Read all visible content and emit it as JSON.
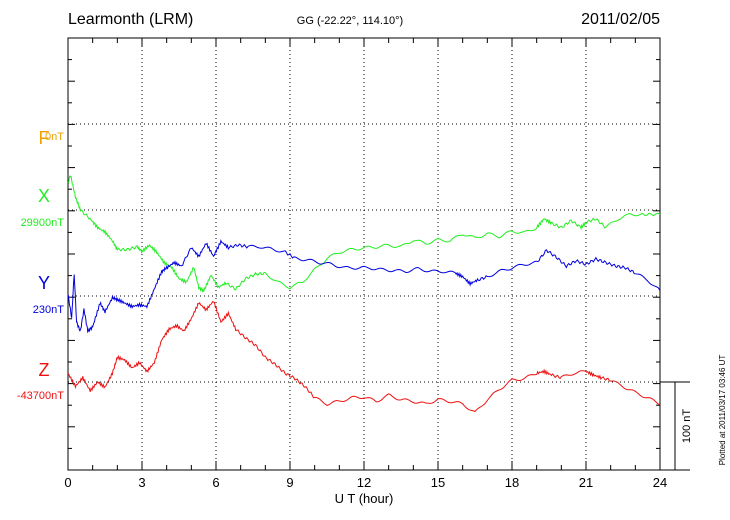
{
  "header": {
    "station": "Learmonth (LRM)",
    "coords": "GG (-22.22°, 114.10°)",
    "date": "2011/02/05"
  },
  "plotted_note": "Plotted at 2011/03/17 03:46 UT",
  "colors": {
    "F": "#f0a000",
    "X": "#22ee22",
    "Y": "#0000dd",
    "Z": "#ee1111",
    "axis": "#000000"
  },
  "chart_data": {
    "type": "line",
    "title": "Learmonth (LRM)",
    "xlabel": "U T (hour)",
    "ylabel": "",
    "xlim": [
      0,
      24
    ],
    "x_ticks": [
      0,
      3,
      6,
      9,
      12,
      15,
      18,
      21,
      24
    ],
    "x_tick_labels": [
      "0",
      "3",
      "6",
      "9",
      "12",
      "15",
      "18",
      "21",
      "24"
    ],
    "grid": true,
    "scale_bar_label": "100 nT",
    "scale_bar_nT": 100,
    "channels": [
      {
        "name": "F",
        "label": "F",
        "baseline_label": "0nT",
        "baseline_nT": 0,
        "has_data": false
      },
      {
        "name": "X",
        "label": "X",
        "baseline_label": "29900nT",
        "baseline_nT": 29900,
        "has_data": true
      },
      {
        "name": "Y",
        "label": "Y",
        "baseline_label": "230nT",
        "baseline_nT": 230,
        "has_data": true
      },
      {
        "name": "Z",
        "label": "Z",
        "baseline_label": "-43700nT",
        "baseline_nT": -43700,
        "has_data": true
      }
    ],
    "series": [
      {
        "name": "X",
        "unit": "nT",
        "x": [
          0,
          0.1,
          0.3,
          0.5,
          0.9,
          1.2,
          1.5,
          1.8,
          2.0,
          2.4,
          2.8,
          3.0,
          3.3,
          3.6,
          3.9,
          4.2,
          4.5,
          4.8,
          5.1,
          5.3,
          5.5,
          5.8,
          6.1,
          6.4,
          6.8,
          7.2,
          7.6,
          8.0,
          8.5,
          9.0,
          9.5,
          10.0,
          10.5,
          11.0,
          11.5,
          12.0,
          12.5,
          13.0,
          13.5,
          14.0,
          14.5,
          15.0,
          15.5,
          16.0,
          16.5,
          17.0,
          17.5,
          18.0,
          18.5,
          19.0,
          19.3,
          19.6,
          20.0,
          20.4,
          20.8,
          21.0,
          21.4,
          21.8,
          22.3,
          22.8,
          23.3,
          24.0
        ],
        "values": [
          29930,
          29940,
          29915,
          29900,
          29890,
          29880,
          29875,
          29865,
          29855,
          29855,
          29858,
          29853,
          29860,
          29852,
          29840,
          29835,
          29822,
          29818,
          29835,
          29812,
          29808,
          29826,
          29812,
          29817,
          29810,
          29822,
          29827,
          29828,
          29818,
          29812,
          29818,
          29832,
          29845,
          29852,
          29855,
          29857,
          29858,
          29860,
          29858,
          29866,
          29862,
          29866,
          29865,
          29873,
          29868,
          29873,
          29870,
          29876,
          29874,
          29880,
          29890,
          29885,
          29880,
          29888,
          29880,
          29886,
          29890,
          29880,
          29890,
          29895,
          29895,
          29895
        ]
      },
      {
        "name": "Y",
        "unit": "nT",
        "x": [
          0,
          0.15,
          0.25,
          0.35,
          0.5,
          0.65,
          0.8,
          1.0,
          1.3,
          1.5,
          1.8,
          2.0,
          2.3,
          2.6,
          2.9,
          3.2,
          3.5,
          3.8,
          4.0,
          4.3,
          4.6,
          5.0,
          5.3,
          5.6,
          5.9,
          6.2,
          6.5,
          6.9,
          7.3,
          7.8,
          8.3,
          8.8,
          9.2,
          9.7,
          10.2,
          10.7,
          11.2,
          11.7,
          12.2,
          12.7,
          13.2,
          13.7,
          14.2,
          14.7,
          15.2,
          15.7,
          16.0,
          16.3,
          16.6,
          17.0,
          17.5,
          18.0,
          18.5,
          19.0,
          19.4,
          19.8,
          20.2,
          20.6,
          21.0,
          21.4,
          21.8,
          22.2,
          22.6,
          23.0,
          23.5,
          24.0
        ],
        "values": [
          232,
          205,
          255,
          200,
          190,
          215,
          190,
          195,
          222,
          212,
          228,
          226,
          222,
          218,
          220,
          218,
          238,
          258,
          262,
          268,
          264,
          285,
          275,
          290,
          275,
          292,
          285,
          288,
          286,
          286,
          283,
          280,
          273,
          271,
          268,
          266,
          262,
          262,
          262,
          260,
          259,
          258,
          261,
          258,
          258,
          256,
          252,
          244,
          248,
          252,
          258,
          262,
          266,
          268,
          282,
          274,
          264,
          270,
          266,
          272,
          268,
          264,
          262,
          256,
          248,
          236
        ]
      },
      {
        "name": "Z",
        "unit": "nT",
        "x": [
          0,
          0.3,
          0.6,
          0.9,
          1.2,
          1.5,
          1.8,
          2.0,
          2.3,
          2.6,
          2.9,
          3.2,
          3.5,
          3.8,
          4.1,
          4.4,
          4.7,
          5.0,
          5.3,
          5.6,
          5.9,
          6.2,
          6.5,
          6.8,
          7.2,
          7.6,
          8.0,
          8.4,
          8.8,
          9.2,
          9.6,
          10.0,
          10.5,
          11.0,
          11.5,
          12.0,
          12.5,
          13.0,
          13.5,
          14.0,
          14.5,
          15.0,
          15.5,
          16.0,
          16.5,
          17.0,
          17.5,
          18.0,
          18.5,
          19.0,
          19.3,
          19.6,
          20.0,
          20.5,
          21.0,
          21.3,
          21.6,
          22.0,
          22.5,
          23.0,
          23.5,
          24.0
        ],
        "values": [
          -43690,
          -43705,
          -43695,
          -43710,
          -43700,
          -43706,
          -43690,
          -43672,
          -43675,
          -43684,
          -43678,
          -43688,
          -43678,
          -43652,
          -43640,
          -43636,
          -43642,
          -43628,
          -43610,
          -43618,
          -43608,
          -43632,
          -43622,
          -43640,
          -43650,
          -43658,
          -43672,
          -43680,
          -43690,
          -43696,
          -43705,
          -43718,
          -43725,
          -43722,
          -43718,
          -43717,
          -43722,
          -43715,
          -43720,
          -43722,
          -43725,
          -43720,
          -43722,
          -43725,
          -43735,
          -43720,
          -43708,
          -43698,
          -43696,
          -43690,
          -43688,
          -43692,
          -43695,
          -43690,
          -43688,
          -43692,
          -43695,
          -43698,
          -43705,
          -43712,
          -43718,
          -43725
        ]
      }
    ]
  }
}
